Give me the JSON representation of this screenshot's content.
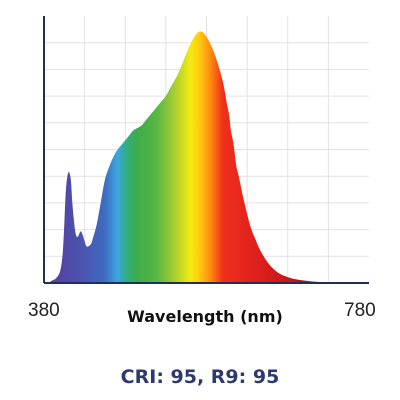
{
  "chart_data": {
    "type": "area",
    "title": "",
    "xlabel": "Wavelength (nm)",
    "ylabel": "",
    "xlim": [
      380,
      780
    ],
    "ylim": [
      0,
      1
    ],
    "x_tick_labels": [
      "380",
      "780"
    ],
    "grid": true,
    "legend": "none",
    "fill": "visible-spectrum gradient",
    "x": [
      380,
      385,
      390,
      395,
      400,
      403,
      405,
      407,
      410,
      413,
      415,
      418,
      420,
      422,
      425,
      427,
      430,
      432,
      435,
      438,
      440,
      445,
      450,
      455,
      460,
      465,
      470,
      475,
      480,
      485,
      490,
      495,
      500,
      505,
      510,
      515,
      520,
      525,
      530,
      535,
      540,
      545,
      550,
      555,
      560,
      565,
      570,
      575,
      580,
      585,
      590,
      595,
      600,
      603,
      605,
      608,
      610,
      613,
      615,
      617,
      620,
      625,
      630,
      635,
      640,
      645,
      650,
      655,
      660,
      665,
      670,
      675,
      680,
      685,
      690,
      695,
      700,
      705,
      710,
      715,
      720,
      725,
      730,
      735,
      740,
      745,
      750,
      755,
      760,
      765,
      770,
      775,
      780
    ],
    "y": [
      0.0,
      0.0,
      0.01,
      0.02,
      0.05,
      0.12,
      0.24,
      0.38,
      0.45,
      0.42,
      0.32,
      0.22,
      0.19,
      0.19,
      0.21,
      0.2,
      0.17,
      0.15,
      0.15,
      0.16,
      0.18,
      0.24,
      0.33,
      0.42,
      0.47,
      0.51,
      0.54,
      0.56,
      0.58,
      0.6,
      0.62,
      0.63,
      0.64,
      0.66,
      0.68,
      0.7,
      0.72,
      0.74,
      0.76,
      0.79,
      0.82,
      0.85,
      0.89,
      0.93,
      0.97,
      1.0,
      1.02,
      1.02,
      1.0,
      0.97,
      0.93,
      0.88,
      0.82,
      0.77,
      0.73,
      0.68,
      0.62,
      0.57,
      0.52,
      0.47,
      0.43,
      0.35,
      0.28,
      0.22,
      0.18,
      0.14,
      0.11,
      0.085,
      0.065,
      0.05,
      0.038,
      0.03,
      0.024,
      0.019,
      0.015,
      0.012,
      0.01,
      0.008,
      0.006,
      0.005,
      0.004,
      0.003,
      0.002,
      0.002,
      0.001,
      0.001,
      0.001,
      0.0,
      0.0,
      0.0,
      0.0,
      0.0,
      0.0
    ]
  },
  "footer": {
    "caption": "CRI: 95, R9: 95",
    "caption_color": "#2e3a6e"
  },
  "colors": {
    "axis": "#1f2f5c",
    "grid": "#e2e2e2",
    "spectrum_stops": [
      {
        "nm": 380,
        "color": "#5a3d9a"
      },
      {
        "nm": 400,
        "color": "#5245a4"
      },
      {
        "nm": 430,
        "color": "#4a56b0"
      },
      {
        "nm": 455,
        "color": "#3f6cc2"
      },
      {
        "nm": 470,
        "color": "#3da6e0"
      },
      {
        "nm": 480,
        "color": "#2fae8a"
      },
      {
        "nm": 495,
        "color": "#3dac4a"
      },
      {
        "nm": 520,
        "color": "#5ab742"
      },
      {
        "nm": 540,
        "color": "#a6cd32"
      },
      {
        "nm": 560,
        "color": "#f2ea10"
      },
      {
        "nm": 570,
        "color": "#ffcf10"
      },
      {
        "nm": 585,
        "color": "#ff8a10"
      },
      {
        "nm": 600,
        "color": "#f0301c"
      },
      {
        "nm": 640,
        "color": "#e0201c"
      },
      {
        "nm": 680,
        "color": "#c8181a"
      },
      {
        "nm": 720,
        "color": "#8e1812"
      },
      {
        "nm": 780,
        "color": "#5a1e12"
      }
    ]
  }
}
